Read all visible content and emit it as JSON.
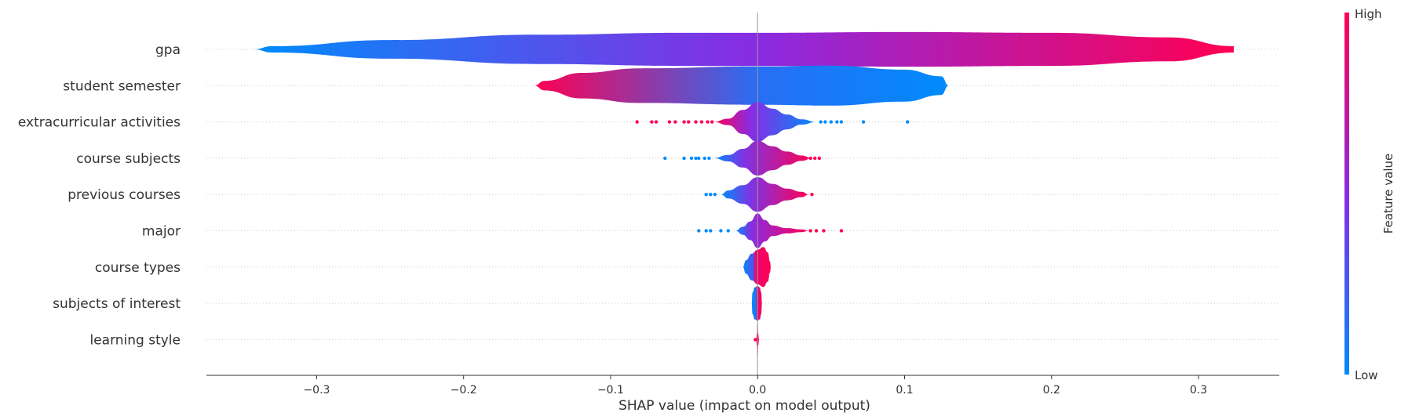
{
  "chart_data": {
    "type": "violin",
    "title": "",
    "xlabel": "SHAP value (impact on model output)",
    "ylabel": "",
    "xlim": [
      -0.375,
      0.355
    ],
    "xticks": [
      -0.3,
      -0.2,
      -0.1,
      0.0,
      0.1,
      0.2,
      0.3
    ],
    "xtick_labels": [
      "−0.3",
      "−0.2",
      "−0.1",
      "0.0",
      "0.1",
      "0.2",
      "0.3"
    ],
    "grid": false,
    "colors": {
      "high": "#ff0052",
      "low": "#008bfb",
      "mid": "#8a2be2"
    },
    "colorbar": {
      "title": "Feature value",
      "high_label": "High",
      "low_label": "Low"
    },
    "features": [
      {
        "name": "gpa",
        "profile": [
          [
            -0.343,
            0.0
          ],
          [
            -0.33,
            0.12
          ],
          [
            -0.25,
            0.35
          ],
          [
            -0.15,
            0.55
          ],
          [
            -0.05,
            0.62
          ],
          [
            0.0,
            0.62
          ],
          [
            0.1,
            0.65
          ],
          [
            0.2,
            0.62
          ],
          [
            0.28,
            0.45
          ],
          [
            0.324,
            0.12
          ],
          [
            0.324,
            0.0
          ]
        ],
        "color_stops": [
          [
            -0.343,
            0.0
          ],
          [
            0.0,
            0.5
          ],
          [
            0.324,
            1.0
          ]
        ],
        "outliers": []
      },
      {
        "name": "student semester",
        "profile": [
          [
            -0.152,
            0.0
          ],
          [
            -0.145,
            0.18
          ],
          [
            -0.12,
            0.48
          ],
          [
            -0.08,
            0.65
          ],
          [
            0.0,
            0.72
          ],
          [
            0.05,
            0.75
          ],
          [
            0.1,
            0.6
          ],
          [
            0.125,
            0.35
          ],
          [
            0.13,
            0.0
          ]
        ],
        "color_stops": [
          [
            -0.152,
            1.0
          ],
          [
            0.0,
            0.15
          ],
          [
            0.13,
            0.0
          ]
        ],
        "outliers": []
      },
      {
        "name": "extracurricular activities",
        "profile": [
          [
            -0.03,
            0.0
          ],
          [
            -0.02,
            0.12
          ],
          [
            -0.01,
            0.45
          ],
          [
            0.0,
            0.75
          ],
          [
            0.01,
            0.5
          ],
          [
            0.02,
            0.28
          ],
          [
            0.03,
            0.1
          ],
          [
            0.04,
            0.0
          ]
        ],
        "color_stops": [
          [
            -0.03,
            1.0
          ],
          [
            -0.005,
            0.5
          ],
          [
            0.04,
            0.0
          ]
        ],
        "outliers": [
          {
            "x": -0.082,
            "v": 1.0
          },
          {
            "x": -0.072,
            "v": 1.0
          },
          {
            "x": -0.069,
            "v": 1.0
          },
          {
            "x": -0.06,
            "v": 1.0
          },
          {
            "x": -0.056,
            "v": 1.0
          },
          {
            "x": -0.05,
            "v": 1.0
          },
          {
            "x": -0.047,
            "v": 1.0
          },
          {
            "x": -0.042,
            "v": 1.0
          },
          {
            "x": -0.038,
            "v": 1.0
          },
          {
            "x": -0.034,
            "v": 1.0
          },
          {
            "x": -0.031,
            "v": 1.0
          },
          {
            "x": 0.043,
            "v": 0.0
          },
          {
            "x": 0.046,
            "v": 0.0
          },
          {
            "x": 0.05,
            "v": 0.0
          },
          {
            "x": 0.054,
            "v": 0.0
          },
          {
            "x": 0.057,
            "v": 0.0
          },
          {
            "x": 0.072,
            "v": 0.0
          },
          {
            "x": 0.102,
            "v": 0.0
          }
        ]
      },
      {
        "name": "course subjects",
        "profile": [
          [
            -0.03,
            0.0
          ],
          [
            -0.02,
            0.12
          ],
          [
            -0.01,
            0.35
          ],
          [
            0.0,
            0.65
          ],
          [
            0.01,
            0.45
          ],
          [
            0.02,
            0.25
          ],
          [
            0.03,
            0.1
          ],
          [
            0.037,
            0.0
          ]
        ],
        "color_stops": [
          [
            -0.03,
            0.0
          ],
          [
            -0.01,
            0.45
          ],
          [
            0.037,
            1.0
          ]
        ],
        "outliers": [
          {
            "x": -0.063,
            "v": 0.0
          },
          {
            "x": -0.05,
            "v": 0.0
          },
          {
            "x": -0.045,
            "v": 0.0
          },
          {
            "x": -0.042,
            "v": 0.0
          },
          {
            "x": -0.04,
            "v": 0.0
          },
          {
            "x": -0.036,
            "v": 0.0
          },
          {
            "x": -0.033,
            "v": 0.0
          },
          {
            "x": 0.033,
            "v": 1.0
          },
          {
            "x": 0.036,
            "v": 1.0
          },
          {
            "x": 0.039,
            "v": 1.0
          },
          {
            "x": 0.042,
            "v": 1.0
          }
        ]
      },
      {
        "name": "previous courses",
        "profile": [
          [
            -0.025,
            0.0
          ],
          [
            -0.02,
            0.15
          ],
          [
            -0.01,
            0.35
          ],
          [
            0.0,
            0.65
          ],
          [
            0.01,
            0.4
          ],
          [
            0.02,
            0.22
          ],
          [
            0.03,
            0.1
          ],
          [
            0.035,
            0.0
          ]
        ],
        "color_stops": [
          [
            -0.025,
            0.0
          ],
          [
            -0.005,
            0.45
          ],
          [
            0.035,
            1.0
          ]
        ],
        "outliers": [
          {
            "x": -0.035,
            "v": 0.0
          },
          {
            "x": -0.032,
            "v": 0.0
          },
          {
            "x": -0.029,
            "v": 0.0
          },
          {
            "x": 0.037,
            "v": 1.0
          }
        ]
      },
      {
        "name": "major",
        "profile": [
          [
            -0.015,
            0.0
          ],
          [
            -0.01,
            0.15
          ],
          [
            -0.005,
            0.35
          ],
          [
            0.0,
            0.65
          ],
          [
            0.005,
            0.4
          ],
          [
            0.01,
            0.2
          ],
          [
            0.02,
            0.1
          ],
          [
            0.03,
            0.05
          ],
          [
            0.035,
            0.0
          ]
        ],
        "color_stops": [
          [
            -0.015,
            0.0
          ],
          [
            -0.004,
            0.5
          ],
          [
            0.035,
            1.0
          ]
        ],
        "outliers": [
          {
            "x": -0.04,
            "v": 0.0
          },
          {
            "x": -0.035,
            "v": 0.0
          },
          {
            "x": -0.032,
            "v": 0.0
          },
          {
            "x": -0.025,
            "v": 0.0
          },
          {
            "x": -0.02,
            "v": 0.0
          },
          {
            "x": 0.036,
            "v": 1.0
          },
          {
            "x": 0.04,
            "v": 1.0
          },
          {
            "x": 0.045,
            "v": 1.0
          },
          {
            "x": 0.057,
            "v": 1.0
          }
        ]
      },
      {
        "name": "course types",
        "profile": [
          [
            -0.01,
            0.0
          ],
          [
            -0.008,
            0.25
          ],
          [
            -0.004,
            0.5
          ],
          [
            0.0,
            0.65
          ],
          [
            0.004,
            0.75
          ],
          [
            0.007,
            0.55
          ],
          [
            0.0085,
            0.2
          ],
          [
            0.009,
            0.0
          ]
        ],
        "color_stops": [
          [
            -0.01,
            0.0
          ],
          [
            -0.003,
            0.3
          ],
          [
            -0.0015,
            0.9
          ],
          [
            0.009,
            1.0
          ]
        ],
        "outliers": []
      },
      {
        "name": "subjects of interest",
        "profile": [
          [
            -0.004,
            0.0
          ],
          [
            -0.0035,
            0.4
          ],
          [
            -0.002,
            0.6
          ],
          [
            0.0,
            0.65
          ],
          [
            0.0015,
            0.6
          ],
          [
            0.0025,
            0.4
          ],
          [
            0.003,
            0.0
          ]
        ],
        "color_stops": [
          [
            -0.004,
            0.0
          ],
          [
            -0.0015,
            0.1
          ],
          [
            0.0,
            0.85
          ],
          [
            0.003,
            1.0
          ]
        ],
        "outliers": []
      },
      {
        "name": "learning style",
        "profile": [
          [
            -0.001,
            0.0
          ],
          [
            -0.0005,
            0.2
          ],
          [
            0.0,
            0.7
          ],
          [
            0.0005,
            0.2
          ],
          [
            0.001,
            0.0
          ]
        ],
        "color_stops": [
          [
            -0.001,
            1.0
          ],
          [
            0.001,
            1.0
          ]
        ],
        "outliers": [
          {
            "x": -0.0015,
            "v": 1.0
          }
        ]
      }
    ]
  }
}
